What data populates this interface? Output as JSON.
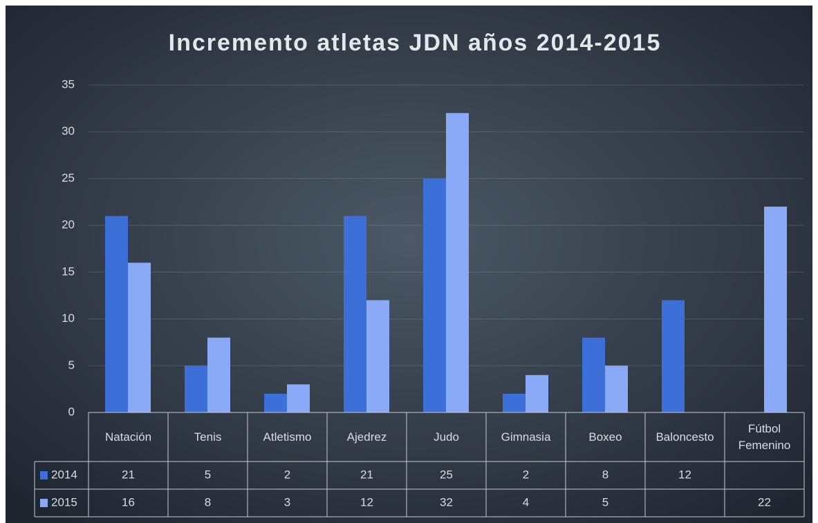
{
  "chart_data": {
    "type": "bar",
    "title": "Incremento atletas JDN años 2014-2015",
    "categories": [
      "Natación",
      "Tenis",
      "Atletismo",
      "Ajedrez",
      "Judo",
      "Gimnasia",
      "Boxeo",
      "Baloncesto",
      "Fútbol Femenino"
    ],
    "series": [
      {
        "name": "2014",
        "color": "#3d6fd8",
        "values": [
          21,
          5,
          2,
          21,
          25,
          2,
          8,
          12,
          null
        ]
      },
      {
        "name": "2015",
        "color": "#8aa9f6",
        "values": [
          16,
          8,
          3,
          12,
          32,
          4,
          5,
          null,
          22
        ]
      }
    ],
    "ylim": [
      0,
      35
    ],
    "yticks": [
      0,
      5,
      10,
      15,
      20,
      25,
      30,
      35
    ],
    "grid": true
  }
}
